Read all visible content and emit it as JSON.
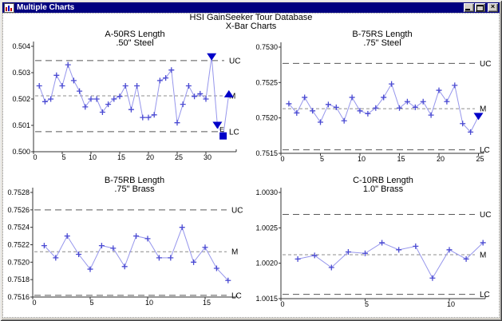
{
  "window": {
    "title": "Multiple Charts",
    "controls": [
      "minimize",
      "maximize",
      "close"
    ]
  },
  "header": {
    "line1": "HSI GainSeeker Tour Database",
    "line2": "X-Bar Charts"
  },
  "colors": {
    "titlebar": "#000080",
    "series_marker": "#4a4ad2",
    "series_line": "#9696ec",
    "special_marker_fill": "#0000c8",
    "limit_line": "#585858",
    "mean_line": "#8c8c8c",
    "axis": "#333333"
  },
  "chart_data": [
    {
      "type": "line",
      "title": "A-50RS Length",
      "subtitle": ".50\" Steel",
      "ylim": [
        0.5,
        0.504
      ],
      "y_ticks": [
        "0.504",
        "0.503",
        "0.502",
        "0.501",
        "0.500"
      ],
      "x_ticks": [
        0,
        5,
        10,
        15,
        20,
        25,
        30
      ],
      "limits": {
        "UC": 0.50346,
        "M": 0.50212,
        "LC": 0.50076
      },
      "limit_labels": [
        "UC",
        "M",
        "LC"
      ],
      "values": [
        0.5025,
        0.5019,
        0.502,
        0.5029,
        0.5025,
        0.5033,
        0.5027,
        0.5023,
        0.5017,
        0.502,
        0.502,
        0.5015,
        0.5018,
        0.502,
        0.5021,
        0.5025,
        0.5016,
        0.5025,
        0.5013,
        0.5013,
        0.5014,
        0.5027,
        0.5028,
        0.5031,
        0.5011,
        0.5018,
        0.5025,
        0.5021,
        0.5022,
        0.502,
        0.5036,
        0.501,
        0.5006,
        0.5022
      ],
      "markers": {
        "31": "triangle-down",
        "32": "triangle-down",
        "33": "square",
        "34": "triangle-up"
      },
      "annotation": {
        "point": 32,
        "text": "E"
      }
    },
    {
      "type": "line",
      "title": "B-75RS Length",
      "subtitle": ".75\" Steel",
      "ylim": [
        0.7515,
        0.753
      ],
      "y_ticks": [
        "0.7530",
        "0.7525",
        "0.7520",
        "0.7515"
      ],
      "x_ticks": [
        0,
        5,
        10,
        15,
        20,
        25
      ],
      "limits": {
        "UC": 0.75277,
        "M": 0.75213,
        "LC": 0.75155
      },
      "limit_labels": [
        "UC",
        "M",
        "LC"
      ],
      "values": [
        0.7522,
        0.75207,
        0.75229,
        0.7521,
        0.75194,
        0.75219,
        0.75215,
        0.75196,
        0.75229,
        0.7521,
        0.75206,
        0.75214,
        0.75229,
        0.75248,
        0.75214,
        0.75223,
        0.75215,
        0.75223,
        0.75204,
        0.75239,
        0.75223,
        0.75246,
        0.75192,
        0.7518,
        0.75202
      ],
      "markers": {
        "25": "triangle-down"
      },
      "annotation": null
    },
    {
      "type": "line",
      "title": "B-75RB Length",
      "subtitle": ".75\" Brass",
      "ylim": [
        0.7516,
        0.7528
      ],
      "y_ticks": [
        "0.7528",
        "0.7526",
        "0.7524",
        "0.7522",
        "0.7520",
        "0.7518",
        "0.7516"
      ],
      "x_ticks": [
        0,
        5,
        10,
        15
      ],
      "limits": {
        "UC": 0.7526,
        "M": 0.75212,
        "LC": 0.75162
      },
      "limit_labels": [
        "UC",
        "M",
        "LC"
      ],
      "values": [
        0.75219,
        0.75205,
        0.7523,
        0.75209,
        0.75192,
        0.75219,
        0.75216,
        0.75195,
        0.7523,
        0.75227,
        0.75205,
        0.75205,
        0.7524,
        0.752,
        0.75217,
        0.75193,
        0.75179
      ],
      "markers": {},
      "annotation": null
    },
    {
      "type": "line",
      "title": "C-10RB Length",
      "subtitle": "1.0\" Brass",
      "ylim": [
        1.0015,
        1.003
      ],
      "y_ticks": [
        "1.0030",
        "1.0025",
        "1.0020",
        "1.0015"
      ],
      "x_ticks": [
        0,
        5,
        10
      ],
      "limits": {
        "UC": 1.00269,
        "M": 1.00212,
        "LC": 1.00156
      },
      "limit_labels": [
        "UC",
        "M",
        "LC"
      ],
      "values": [
        1.00206,
        1.00211,
        1.00194,
        1.00216,
        1.00214,
        1.00229,
        1.00219,
        1.00224,
        1.00179,
        1.00219,
        1.00206,
        1.00229
      ],
      "markers": {},
      "annotation": null
    }
  ]
}
